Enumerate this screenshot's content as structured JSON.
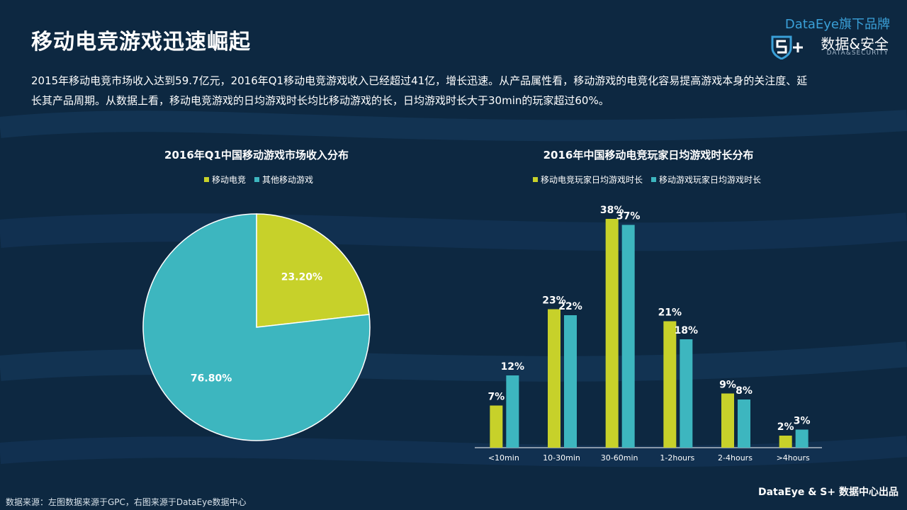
{
  "title": "移动电竞游戏迅速崛起",
  "brand": {
    "tagline": "DataEye旗下品牌",
    "name": "数据&安全",
    "name_en": "DATA&SECURITY",
    "logo_icon": "shield-s-plus-icon"
  },
  "intro": "2015年移动电竞市场收入达到59.7亿元，2016年Q1移动电竞游戏收入已经超过41亿，增长迅速。从产品属性看，移动游戏的电竞化容易提高游戏本身的关注度、延长其产品周期。从数据上看，移动电竞游戏的日均游戏时长均比移动游戏的长，日均游戏时长大于30min的玩家超过60%。",
  "colors": {
    "esports": "#c7d12a",
    "other": "#3db6bf",
    "background": "#0d2841"
  },
  "chart_data": [
    {
      "type": "pie",
      "title": "2016年Q1中国移动游戏市场收入分布",
      "legend_position": "top",
      "categories": [
        "移动电竞",
        "其他移动游戏"
      ],
      "values": [
        23.2,
        76.8
      ],
      "labels": [
        "23.20%",
        "76.80%"
      ]
    },
    {
      "type": "bar",
      "title": "2016年中国移动电竞玩家日均游戏时长分布",
      "legend_position": "top",
      "categories": [
        "<10min",
        "10-30min",
        "30-60min",
        "1-2hours",
        "2-4hours",
        ">4hours"
      ],
      "series": [
        {
          "name": "移动电竞玩家日均游戏时长",
          "values": [
            7,
            23,
            38,
            21,
            9,
            2
          ],
          "labels": [
            "7%",
            "23%",
            "38%",
            "21%",
            "9%",
            "2%"
          ]
        },
        {
          "name": "移动游戏玩家日均游戏时长",
          "values": [
            12,
            22,
            37,
            18,
            8,
            3
          ],
          "labels": [
            "12%",
            "22%",
            "37%",
            "18%",
            "8%",
            "3%"
          ]
        }
      ],
      "ylim": [
        0,
        40
      ],
      "grid": false
    }
  ],
  "footer": {
    "source": "数据来源：左图数据来源于GPC，右图来源于DataEye数据中心",
    "brand": "DataEye & S+ 数据中心出品"
  }
}
